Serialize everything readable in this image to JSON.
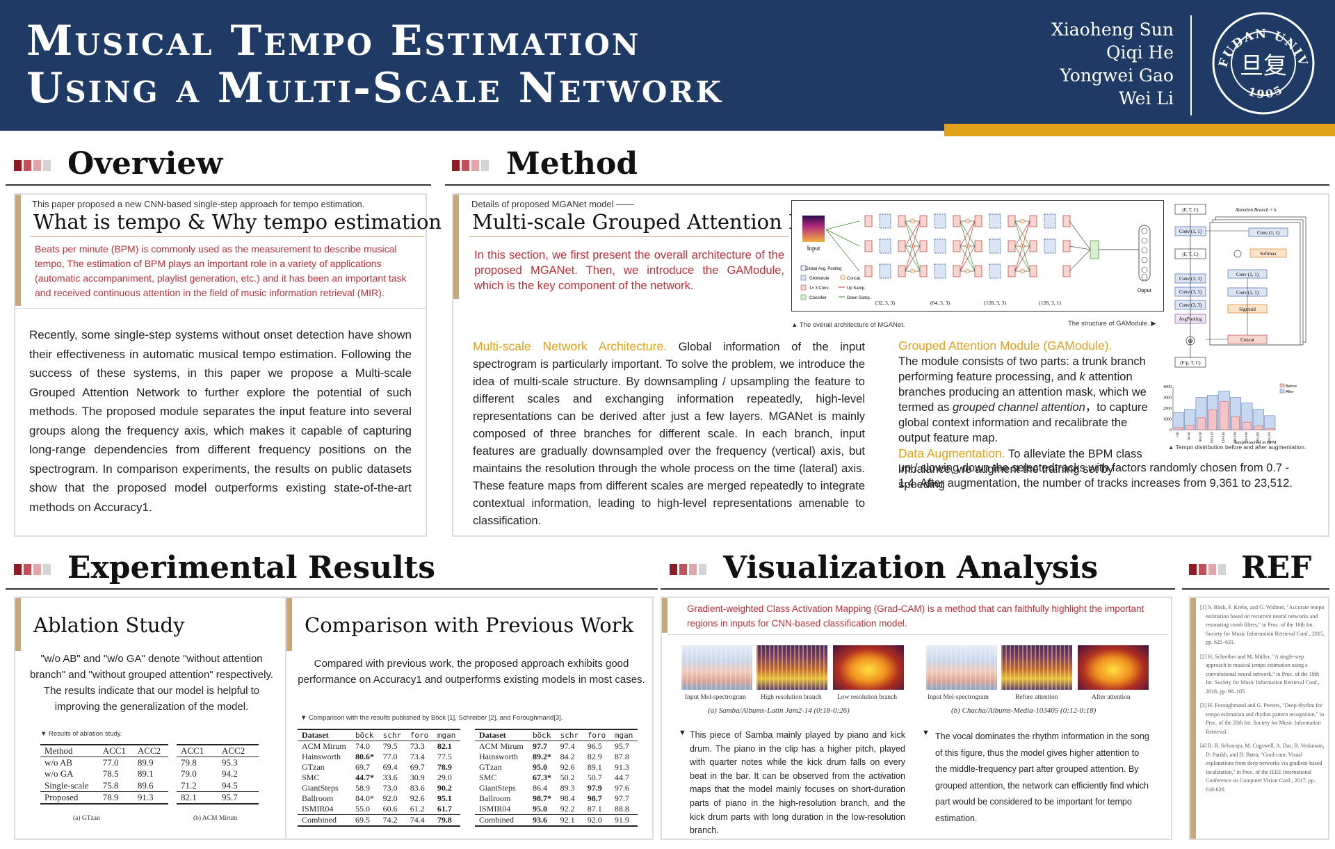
{
  "header": {
    "title_line1": "Musical Tempo Estimation",
    "title_line2": "Using a Multi-Scale Network",
    "authors": [
      "Xiaoheng Sun",
      "Qiqi He",
      "Yongwei Gao",
      "Wei Li"
    ],
    "logo_text": "FUDAN UNIVERSITY",
    "logo_year": "1905",
    "logo_glyph": "旦复"
  },
  "colors": {
    "header_bg": "#1f3a64",
    "gold": "#e0a21a",
    "accent_red": "#b8323a"
  },
  "overview": {
    "title": "Overview",
    "intro": "This paper proposed a new CNN-based single-step approach for tempo estimation.",
    "heading": "What is tempo & Why tempo estimation",
    "highlight": "Beats per minute (BPM) is commonly used as the measurement to describe musical tempo, The estimation of BPM plays an important role in a variety of applications (automatic accompaniment, playlist generation, etc.) and it has been an important task and received continuous attention in the field of music information retrieval (MIR).",
    "body": "Recently, some single-step systems without onset detection have shown their effectiveness in automatic musical tempo estimation. Following the success of these systems, in this paper we propose a Multi-scale Grouped Attention Network to further explore the potential of such methods. The proposed module separates the input feature into several groups along the frequency axis, which makes it capable of capturing long-range dependencies from different frequency positions on the spectrogram. In comparison experiments, the results on public datasets show that the proposed model outperforms existing state-of-the-art methods on Accuracy1."
  },
  "method": {
    "title": "Method",
    "intro": "Details of proposed MGANet model ——",
    "heading": "Multi-scale Grouped Attention Network",
    "highlight": "In this section, we first present the overall architecture of the proposed MGANet. Then, we introduce the GAModule, which is the key component of the network.",
    "arch_caption": "▲ The overall architecture of MGANet.",
    "gam_caption": "The structure of GAModule. ▶",
    "hist_caption": "▲ Tempo distribution before and after augmentation.",
    "arch": {
      "input": "Input",
      "output": "Ouput",
      "scales": [
        "{32, 3, 3}",
        "{64, 3, 3}",
        "{128, 3, 3}",
        "{128, 3, 1}"
      ],
      "legend": [
        "Global Avg. Pooling",
        "GAModule",
        "1× 3 Conv.",
        "Classifier",
        "Concat.",
        "Up Samp.",
        "Down Samp."
      ]
    },
    "gam": {
      "branch": "Attention Branch × k",
      "in": "(F, T, C)",
      "conv1": "Conv (1, 1)",
      "ftc": "(F, T, C)",
      "conv3a": "Conv (3, 3)",
      "conv3b": "Conv (3, 3)",
      "conv3c": "Conv (3, 3)",
      "avg": "AvgPooling",
      "out": "(F/p, T, C)",
      "bconv1": "Conv (1, 1)",
      "softmax": "Softmax",
      "bconv2": "Conv (1, 1)",
      "bconv3": "Conv (1, 1)",
      "sigmoid": "Sigmoid",
      "concat": "Concat"
    },
    "mna_title": "Multi-scale Network Architecture.",
    "mna_body": " Global information of the input spectrogram is particularly important. To solve the problem, we introduce the idea of multi-scale structure. By downsampling / upsampling the feature to different scales and exchanging information repeatedly, high-level representations can be derived after just a few layers. MGANet is mainly composed of three branches for different scale. In each branch, input features are gradually downsampled over the frequency (vertical) axis, but maintains the resolution through the whole process on the time (lateral) axis. These feature maps from different scales are merged repeatedly to integrate contextual information, leading to high-level representations amenable to classification.",
    "gam_title": "Grouped Attention Module (GAModule).",
    "gam_body1": "The module consists of two parts: a trunk branch performing feature processing, and ",
    "gam_k": "k",
    "gam_body2": " attention branches producing an attention mask, which we termed as ",
    "gam_em": "grouped channel attention",
    "gam_body3": "，to capture global context information and recalibrate the output feature map.",
    "da_title": "Data Augmentation.",
    "da_body1": " To alleviate the BPM class imbalance, we  augment the training set by speeding",
    "da_body2": "up / slowing down the selectedtracks with factors randomly chosen from 0.7 - 1.4. After augmentation, the number of tracks increases from 9,361 to 23,512."
  },
  "chart_data": {
    "type": "bar",
    "categories": [
      "<60",
      "60-80",
      "80-100",
      "100-120",
      "120-140",
      "140-160",
      "160-180",
      "180-200",
      "200-220"
    ],
    "series": [
      {
        "name": "Before",
        "values": [
          200,
          400,
          1100,
          1850,
          2600,
          1200,
          700,
          350,
          120
        ]
      },
      {
        "name": "After",
        "values": [
          1600,
          1900,
          3000,
          3200,
          3600,
          3000,
          2500,
          1900,
          1300
        ]
      }
    ],
    "xlabel": "Tempo interval in BPM",
    "yticks": [
      "4000",
      "3000",
      "2000",
      "1000",
      "0"
    ],
    "ylim": [
      0,
      4000
    ],
    "legend": "top-right"
  },
  "results": {
    "title": "Experimental Results",
    "ablation": {
      "heading": "Ablation Study",
      "desc": "\"w/o AB\" and \"w/o GA\" denote \"without attention branch\" and \"without grouped attention\" respectively. The results indicate that our model is helpful to improving the generalization of the model.",
      "caption": "▼  Results of ablation study.",
      "headers": [
        "Method",
        "ACC1",
        "ACC2"
      ],
      "rows": [
        [
          "w/o AB",
          "77.0",
          "89.9"
        ],
        [
          "w/o GA",
          "78.5",
          "89.1"
        ],
        [
          "Single-scale",
          "75.8",
          "89.6"
        ],
        [
          "Proposed",
          "78.9",
          "91.3"
        ]
      ],
      "headers_b": [
        "ACC1",
        "ACC2"
      ],
      "rows_b": [
        [
          "79.8",
          "95.3"
        ],
        [
          "79.0",
          "94.2"
        ],
        [
          "71.2",
          "94.5"
        ],
        [
          "82.1",
          "95.7"
        ]
      ],
      "label_a": "(a) GTzan",
      "label_b": "(b) ACM Mirum"
    },
    "comparison": {
      "heading": "Comparison with Previous Work",
      "desc": "Compared with previous work, the proposed approach exhibits good performance on Accuracy1 and outperforms existing models in most cases.",
      "caption": "▼  Comparison with the results published by Böck [1], Schreiber [2], and Foroughmand[3].",
      "headers": [
        "Dataset",
        "böck",
        "schr",
        "foro",
        "mgan"
      ],
      "rows_a": [
        [
          "ACM Mirum",
          "74.0",
          "79.5",
          "73.3",
          "82.1"
        ],
        [
          "Hainsworth",
          "80.6*",
          "77.0",
          "73.4",
          "77.5"
        ],
        [
          "GTzan",
          "69.7",
          "69.4",
          "69.7",
          "78.9"
        ],
        [
          "SMC",
          "44.7*",
          "33.6",
          "30.9",
          "29.0"
        ],
        [
          "GiantSteps",
          "58.9",
          "73.0",
          "83.6",
          "90.2"
        ],
        [
          "Ballroom",
          "84.0*",
          "92.0",
          "92.6",
          "95.1"
        ],
        [
          "ISMIR04",
          "55.0",
          "60.6",
          "61.2",
          "61.7"
        ],
        [
          "Combined",
          "69.5",
          "74.2",
          "74.4",
          "79.8"
        ]
      ],
      "rows_b": [
        [
          "ACM Mirum",
          "97.7",
          "97.4",
          "96.5",
          "95.7"
        ],
        [
          "Hainsworth",
          "89.2*",
          "84.2",
          "82.9",
          "87.8"
        ],
        [
          "GTzan",
          "95.0",
          "92.6",
          "89.1",
          "91.3"
        ],
        [
          "SMC",
          "67.3*",
          "50.2",
          "50.7",
          "44.7"
        ],
        [
          "GiantSteps",
          "86.4",
          "89.3",
          "97.9",
          "97.6"
        ],
        [
          "Ballroom",
          "98.7*",
          "98.4",
          "98.7",
          "97.7"
        ],
        [
          "ISMIR04",
          "95.0",
          "92.2",
          "87.1",
          "88.8"
        ],
        [
          "Combined",
          "93.6",
          "92.1",
          "92.0",
          "91.9"
        ]
      ]
    }
  },
  "viz": {
    "title": "Visualization Analysis",
    "highlight": "Gradient-weighted Class Activation Mapping (Grad-CAM) is a method that can faithfully highlight the important regions in inputs for CNN-based classification model.",
    "labels_a": [
      "Input Mel-spectrogram",
      "High resolution branch",
      "Low resolution branch"
    ],
    "labels_b": [
      "Input Mel-spectrogram",
      "Before attention",
      "After attention"
    ],
    "cap_a": "(a) Samba/Albums-Latin Jam2-14  (0:18-0:26)",
    "cap_b": "(b) Chacha/Albums-Media-103405  (0:12-0:18)",
    "desc_a": "This piece of Samba mainly played by piano and kick drum. The piano in the clip has a higher pitch, played with quarter notes while the kick drum falls on every beat in the bar. It can be observed from the activation maps that the model mainly focuses on short-duration parts of piano in the high-resolution branch, and the kick drum parts with long duration in the low-resolution branch.",
    "desc_b": "The vocal dominates the rhythm information in the song of this figure, thus the model gives higher attention to the middle-frequency part after grouped attention. By grouped attention, the network can efficiently find which part would be considered to be important for tempo estimation."
  },
  "ref": {
    "title": "REF",
    "items": [
      "[1] S. Böck, F. Krebs, and G. Widmer, \"Accurate tempo estimation based on recurrent neural networks and resonating comb filters,\" in Proc. of the 16th Int. Society for Music Information Retrieval Conf., 2015, pp. 625–631.",
      "[2] H. Schreiber and M. Müller, \"A single-step approach to musical tempo estimation using a convolutional neural network,\" in Proc. of the 19th Int. Society for Music Information Retrieval Conf., 2018, pp. 98–105.",
      "[3] H. Foroughmand and G. Peeters, \"Deep-rhythm for tempo estimation and rhythm pattern recognition,\" in Proc. of the 20th Int. Society for Music Information Retrieval.",
      "[4] R. R. Selvaraju, M. Cogswell, A. Das, R. Vedantam, D. Parikh, and D. Batra, \"Grad-cam: Visual explanations from deep networks via gradient-based localization,\" in Proc. of the IEEE International Conference on Computer Vision Conf., 2017, pp. 618-626."
    ]
  }
}
